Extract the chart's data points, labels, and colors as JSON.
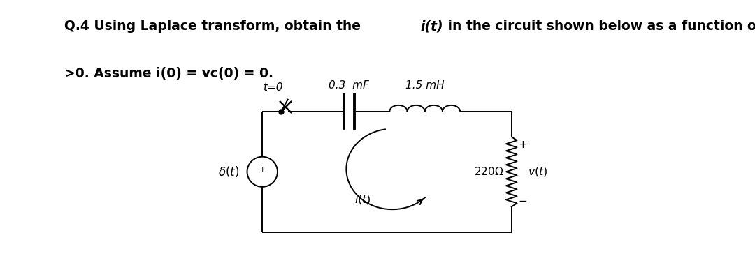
{
  "bg_color": "#ffffff",
  "text_color": "#000000",
  "title_normal": "Q.4 Using Laplace transform, obtain the ",
  "title_italic": "i(t)",
  "title_normal2": " in the circuit shown below as a function of time for t",
  "title_line2": ">0. Assume i(0) = vc(0) = 0.",
  "switch_label": "t=0",
  "cap_label": "0.3  mF",
  "ind_label": "1.5 mH",
  "source_label": "$\\delta(t)$",
  "current_label": "$i(t)$",
  "resistor_label": "220$\\Omega$",
  "voltage_label": "$v(t)$",
  "lw": 1.4,
  "title_fontsize": 13.5,
  "label_fontsize": 11.0
}
